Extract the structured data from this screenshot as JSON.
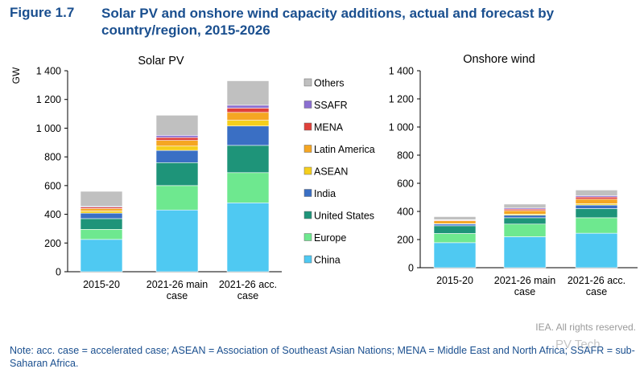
{
  "figure": {
    "label": "Figure 1.7",
    "title": "Solar PV and onshore wind capacity additions, actual and forecast by country/region, 2015-2026"
  },
  "footer": {
    "rights": "IEA. All rights reserved.",
    "note": "Note: acc. case = accelerated case; ASEAN = Association of Southeast Asian Nations; MENA = Middle East and North Africa; SSAFR = sub-Saharan Africa.",
    "watermark": "PV Tech"
  },
  "chart_data": [
    {
      "type": "bar",
      "stacked": true,
      "title": "Solar PV",
      "ylabel": "GW",
      "ylim": [
        0,
        1400
      ],
      "yticks": [
        "0",
        "200",
        "400",
        "600",
        "800",
        "1 000",
        "1 200",
        "1 400"
      ],
      "categories": [
        [
          "2015-20"
        ],
        [
          "2021-26 main",
          "case"
        ],
        [
          "2021-26 acc.",
          "case"
        ]
      ],
      "series": [
        {
          "name": "China",
          "color": "#4fc9f2",
          "values": [
            225,
            430,
            480
          ]
        },
        {
          "name": "Europe",
          "color": "#6ee88f",
          "values": [
            70,
            170,
            210
          ]
        },
        {
          "name": "United States",
          "color": "#1e9479",
          "values": [
            75,
            160,
            190
          ]
        },
        {
          "name": "India",
          "color": "#3a6fc4",
          "values": [
            38,
            85,
            135
          ]
        },
        {
          "name": "ASEAN",
          "color": "#f5cf1c",
          "values": [
            15,
            30,
            40
          ]
        },
        {
          "name": "Latin America",
          "color": "#f5a623",
          "values": [
            17,
            40,
            55
          ]
        },
        {
          "name": "MENA",
          "color": "#e0403a",
          "values": [
            10,
            20,
            30
          ]
        },
        {
          "name": "SSAFR",
          "color": "#8b6fd1",
          "values": [
            5,
            15,
            20
          ]
        },
        {
          "name": "Others",
          "color": "#c0c0c0",
          "values": [
            105,
            140,
            170
          ]
        }
      ]
    },
    {
      "type": "bar",
      "stacked": true,
      "title": "Onshore wind",
      "ylim": [
        0,
        1400
      ],
      "yticks": [
        "0",
        "200",
        "400",
        "600",
        "800",
        "1 000",
        "1 200",
        "1 400"
      ],
      "categories": [
        [
          "2015-20"
        ],
        [
          "2021-26 main",
          "case"
        ],
        [
          "2021-26 acc.",
          "case"
        ]
      ],
      "series": [
        {
          "name": "China",
          "color": "#4fc9f2",
          "values": [
            178,
            220,
            245
          ]
        },
        {
          "name": "Europe",
          "color": "#6ee88f",
          "values": [
            65,
            90,
            110
          ]
        },
        {
          "name": "United States",
          "color": "#1e9479",
          "values": [
            55,
            45,
            65
          ]
        },
        {
          "name": "India",
          "color": "#3a6fc4",
          "values": [
            12,
            18,
            25
          ]
        },
        {
          "name": "ASEAN",
          "color": "#f5cf1c",
          "values": [
            3,
            8,
            10
          ]
        },
        {
          "name": "Latin America",
          "color": "#f5a623",
          "values": [
            20,
            25,
            32
          ]
        },
        {
          "name": "MENA",
          "color": "#e0403a",
          "values": [
            5,
            10,
            15
          ]
        },
        {
          "name": "SSAFR",
          "color": "#8b6fd1",
          "values": [
            3,
            8,
            10
          ]
        },
        {
          "name": "Others",
          "color": "#c0c0c0",
          "values": [
            22,
            28,
            40
          ]
        }
      ]
    }
  ]
}
